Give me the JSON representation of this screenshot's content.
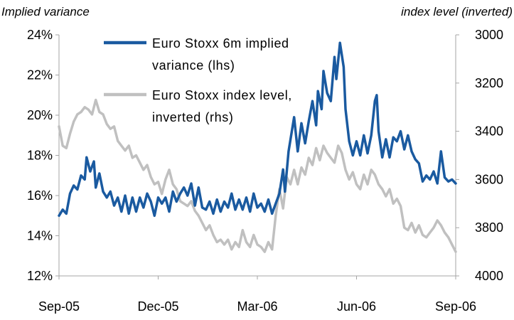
{
  "chart_data": {
    "type": "line",
    "y_left_title": "Implied variance",
    "y_right_title": "index level (inverted)",
    "x_ticks": [
      "Sep-05",
      "Dec-05",
      "Mar-06",
      "Jun-06",
      "Sep-06"
    ],
    "y_left": {
      "min": 12,
      "max": 24,
      "ticks": [
        "24%",
        "22%",
        "20%",
        "18%",
        "16%",
        "14%",
        "12%"
      ]
    },
    "y_right": {
      "min": 3000,
      "max": 4000,
      "inverted": true,
      "ticks": [
        "3000",
        "3200",
        "3400",
        "3600",
        "3800",
        "4000"
      ]
    },
    "legend_placement": "top-center",
    "grid": false,
    "series": [
      {
        "name_line1": "Euro Stoxx 6m implied",
        "name_line2": "variance (lhs)",
        "axis": "left",
        "color": "#1a5aa0",
        "points": [
          [
            0,
            15.0
          ],
          [
            0.01,
            15.3
          ],
          [
            0.02,
            15.1
          ],
          [
            0.03,
            16.1
          ],
          [
            0.04,
            16.5
          ],
          [
            0.05,
            16.3
          ],
          [
            0.06,
            17.0
          ],
          [
            0.07,
            16.8
          ],
          [
            0.075,
            17.9
          ],
          [
            0.085,
            17.2
          ],
          [
            0.095,
            17.7
          ],
          [
            0.1,
            16.4
          ],
          [
            0.11,
            17.1
          ],
          [
            0.12,
            16.2
          ],
          [
            0.13,
            15.9
          ],
          [
            0.14,
            16.2
          ],
          [
            0.15,
            15.5
          ],
          [
            0.16,
            15.9
          ],
          [
            0.17,
            15.2
          ],
          [
            0.18,
            16.0
          ],
          [
            0.19,
            15.1
          ],
          [
            0.2,
            15.9
          ],
          [
            0.21,
            15.2
          ],
          [
            0.22,
            15.9
          ],
          [
            0.23,
            15.4
          ],
          [
            0.24,
            16.1
          ],
          [
            0.25,
            15.7
          ],
          [
            0.26,
            15.0
          ],
          [
            0.27,
            15.9
          ],
          [
            0.28,
            15.6
          ],
          [
            0.29,
            15.9
          ],
          [
            0.3,
            15.2
          ],
          [
            0.31,
            16.2
          ],
          [
            0.32,
            15.7
          ],
          [
            0.33,
            16.1
          ],
          [
            0.34,
            16.4
          ],
          [
            0.35,
            16.0
          ],
          [
            0.36,
            16.6
          ],
          [
            0.37,
            15.5
          ],
          [
            0.38,
            16.4
          ],
          [
            0.39,
            15.4
          ],
          [
            0.4,
            15.3
          ],
          [
            0.41,
            15.7
          ],
          [
            0.42,
            15.1
          ],
          [
            0.43,
            15.8
          ],
          [
            0.44,
            15.2
          ],
          [
            0.45,
            15.7
          ],
          [
            0.46,
            15.4
          ],
          [
            0.47,
            16.1
          ],
          [
            0.48,
            15.3
          ],
          [
            0.49,
            15.8
          ],
          [
            0.5,
            15.3
          ],
          [
            0.51,
            15.9
          ],
          [
            0.52,
            15.2
          ],
          [
            0.53,
            16.1
          ],
          [
            0.54,
            15.4
          ],
          [
            0.55,
            15.6
          ],
          [
            0.56,
            15.2
          ],
          [
            0.57,
            15.8
          ],
          [
            0.58,
            15.1
          ],
          [
            0.59,
            15.6
          ],
          [
            0.6,
            16.1
          ],
          [
            0.61,
            17.3
          ],
          [
            0.615,
            16.2
          ],
          [
            0.625,
            18.2
          ],
          [
            0.64,
            19.9
          ],
          [
            0.65,
            18.2
          ],
          [
            0.66,
            19.6
          ],
          [
            0.67,
            18.6
          ],
          [
            0.68,
            19.7
          ],
          [
            0.69,
            20.7
          ],
          [
            0.7,
            19.5
          ],
          [
            0.705,
            21.2
          ],
          [
            0.715,
            20.3
          ],
          [
            0.72,
            22.2
          ],
          [
            0.73,
            21.1
          ],
          [
            0.74,
            20.7
          ],
          [
            0.75,
            22.9
          ],
          [
            0.755,
            21.8
          ],
          [
            0.765,
            23.6
          ],
          [
            0.775,
            22.4
          ],
          [
            0.78,
            20.3
          ],
          [
            0.79,
            18.7
          ],
          [
            0.8,
            18.0
          ],
          [
            0.81,
            18.7
          ],
          [
            0.82,
            18.0
          ],
          [
            0.83,
            19.0
          ],
          [
            0.84,
            18.1
          ],
          [
            0.85,
            19.0
          ],
          [
            0.86,
            20.7
          ],
          [
            0.865,
            21.0
          ],
          [
            0.87,
            19.2
          ],
          [
            0.88,
            17.9
          ],
          [
            0.89,
            18.8
          ],
          [
            0.9,
            17.9
          ],
          [
            0.91,
            18.9
          ],
          [
            0.92,
            18.7
          ],
          [
            0.93,
            19.2
          ],
          [
            0.94,
            18.3
          ],
          [
            0.95,
            19.0
          ],
          [
            0.96,
            18.2
          ],
          [
            0.97,
            17.8
          ],
          [
            0.98,
            17.6
          ],
          [
            0.99,
            16.7
          ],
          [
            1.0,
            17.0
          ],
          [
            1.01,
            16.8
          ],
          [
            1.02,
            17.2
          ],
          [
            1.03,
            16.6
          ],
          [
            1.04,
            18.2
          ],
          [
            1.05,
            16.9
          ],
          [
            1.06,
            16.7
          ],
          [
            1.07,
            16.8
          ],
          [
            1.08,
            16.6
          ]
        ]
      },
      {
        "name_line1": "Euro Stoxx index level,",
        "name_line2": "inverted (rhs)",
        "axis": "right",
        "color": "#c0c0c0",
        "points": [
          [
            0,
            3380
          ],
          [
            0.01,
            3460
          ],
          [
            0.02,
            3470
          ],
          [
            0.03,
            3410
          ],
          [
            0.04,
            3360
          ],
          [
            0.05,
            3330
          ],
          [
            0.06,
            3320
          ],
          [
            0.07,
            3300
          ],
          [
            0.08,
            3310
          ],
          [
            0.09,
            3330
          ],
          [
            0.1,
            3270
          ],
          [
            0.11,
            3320
          ],
          [
            0.12,
            3330
          ],
          [
            0.13,
            3370
          ],
          [
            0.14,
            3390
          ],
          [
            0.15,
            3380
          ],
          [
            0.16,
            3440
          ],
          [
            0.17,
            3460
          ],
          [
            0.18,
            3480
          ],
          [
            0.19,
            3460
          ],
          [
            0.2,
            3510
          ],
          [
            0.21,
            3500
          ],
          [
            0.22,
            3530
          ],
          [
            0.23,
            3560
          ],
          [
            0.24,
            3540
          ],
          [
            0.25,
            3590
          ],
          [
            0.26,
            3620
          ],
          [
            0.27,
            3610
          ],
          [
            0.28,
            3660
          ],
          [
            0.29,
            3600
          ],
          [
            0.3,
            3560
          ],
          [
            0.31,
            3620
          ],
          [
            0.32,
            3640
          ],
          [
            0.33,
            3690
          ],
          [
            0.34,
            3700
          ],
          [
            0.35,
            3710
          ],
          [
            0.36,
            3690
          ],
          [
            0.37,
            3730
          ],
          [
            0.38,
            3750
          ],
          [
            0.39,
            3780
          ],
          [
            0.4,
            3810
          ],
          [
            0.41,
            3790
          ],
          [
            0.42,
            3830
          ],
          [
            0.43,
            3860
          ],
          [
            0.44,
            3850
          ],
          [
            0.45,
            3870
          ],
          [
            0.46,
            3850
          ],
          [
            0.47,
            3890
          ],
          [
            0.48,
            3860
          ],
          [
            0.49,
            3880
          ],
          [
            0.5,
            3810
          ],
          [
            0.51,
            3860
          ],
          [
            0.52,
            3880
          ],
          [
            0.53,
            3830
          ],
          [
            0.54,
            3870
          ],
          [
            0.55,
            3880
          ],
          [
            0.56,
            3900
          ],
          [
            0.57,
            3860
          ],
          [
            0.58,
            3890
          ],
          [
            0.59,
            3750
          ],
          [
            0.6,
            3640
          ],
          [
            0.61,
            3720
          ],
          [
            0.62,
            3590
          ],
          [
            0.63,
            3620
          ],
          [
            0.64,
            3560
          ],
          [
            0.65,
            3620
          ],
          [
            0.66,
            3550
          ],
          [
            0.67,
            3580
          ],
          [
            0.68,
            3510
          ],
          [
            0.69,
            3540
          ],
          [
            0.7,
            3470
          ],
          [
            0.71,
            3520
          ],
          [
            0.72,
            3460
          ],
          [
            0.73,
            3490
          ],
          [
            0.74,
            3510
          ],
          [
            0.75,
            3530
          ],
          [
            0.76,
            3460
          ],
          [
            0.77,
            3490
          ],
          [
            0.78,
            3560
          ],
          [
            0.79,
            3600
          ],
          [
            0.8,
            3570
          ],
          [
            0.81,
            3620
          ],
          [
            0.82,
            3640
          ],
          [
            0.83,
            3580
          ],
          [
            0.84,
            3620
          ],
          [
            0.85,
            3560
          ],
          [
            0.86,
            3580
          ],
          [
            0.87,
            3620
          ],
          [
            0.88,
            3640
          ],
          [
            0.89,
            3670
          ],
          [
            0.9,
            3640
          ],
          [
            0.91,
            3700
          ],
          [
            0.92,
            3680
          ],
          [
            0.93,
            3710
          ],
          [
            0.94,
            3800
          ],
          [
            0.95,
            3810
          ],
          [
            0.96,
            3780
          ],
          [
            0.97,
            3820
          ],
          [
            0.98,
            3790
          ],
          [
            0.99,
            3830
          ],
          [
            1.0,
            3840
          ],
          [
            1.01,
            3820
          ],
          [
            1.02,
            3800
          ],
          [
            1.03,
            3770
          ],
          [
            1.04,
            3790
          ],
          [
            1.05,
            3820
          ],
          [
            1.06,
            3840
          ],
          [
            1.07,
            3870
          ],
          [
            1.08,
            3900
          ]
        ]
      }
    ]
  }
}
